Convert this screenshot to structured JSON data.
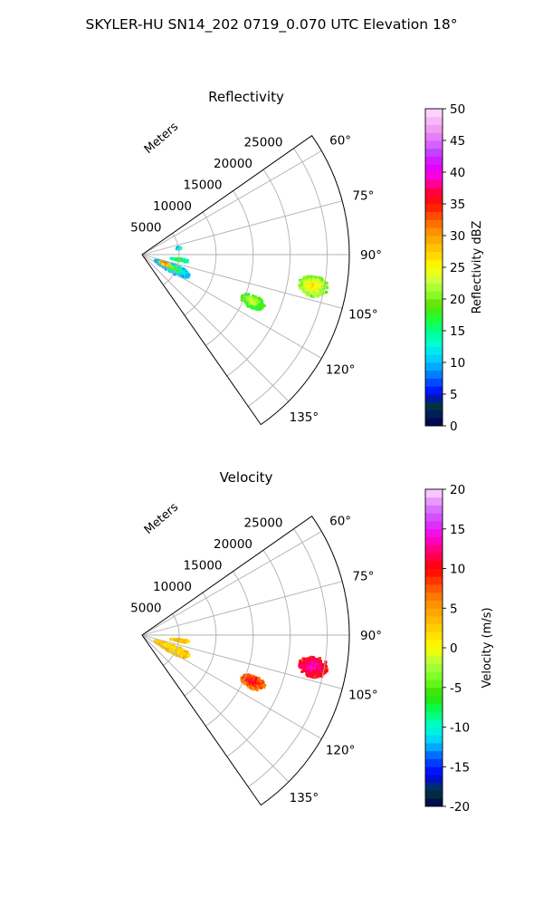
{
  "figure_title": "SKYLER-HU  SN14_202  0719_0.070 UTC Elevation 18°",
  "chart_data": [
    {
      "type": "heatmap",
      "subtype": "polar-sector",
      "title": "Reflectivity",
      "range_label": "Meters",
      "range_ticks": [
        "5000",
        "10000",
        "15000",
        "20000",
        "25000"
      ],
      "range_tick_values": [
        5000,
        10000,
        15000,
        20000,
        25000
      ],
      "range_max": 28000,
      "azimuth_ticks": [
        "60°",
        "75°",
        "90°",
        "105°",
        "120°",
        "135°"
      ],
      "azimuth_tick_values": [
        60,
        75,
        90,
        105,
        120,
        135
      ],
      "azimuth_range": [
        55,
        145
      ],
      "grid": true,
      "colorbar": {
        "label": "Reflectivity dBZ",
        "min": 0,
        "max": 50,
        "ticks": [
          "0",
          "5",
          "10",
          "15",
          "20",
          "25",
          "30",
          "35",
          "40",
          "45",
          "50"
        ],
        "tick_values": [
          0,
          5,
          10,
          15,
          20,
          25,
          30,
          35,
          40,
          45,
          50
        ]
      },
      "echoes": [
        {
          "az_min": 97,
          "az_max": 104,
          "r_min": 21500,
          "r_max": 25500,
          "core_value": 27,
          "edge_value": 20,
          "density": 0.85
        },
        {
          "az_min": 110,
          "az_max": 116,
          "r_min": 14500,
          "r_max": 18000,
          "core_value": 24,
          "edge_value": 17,
          "density": 0.8
        },
        {
          "az_min": 108,
          "az_max": 121,
          "r_min": 1800,
          "r_max": 7000,
          "core_value": 22,
          "edge_value": 9,
          "density": 0.75
        },
        {
          "az_min": 110,
          "az_max": 114,
          "r_min": 2500,
          "r_max": 4200,
          "core_value": 37,
          "edge_value": 25,
          "density": 0.9
        },
        {
          "az_min": 96,
          "az_max": 100,
          "r_min": 3800,
          "r_max": 6500,
          "core_value": 19,
          "edge_value": 13,
          "density": 0.5
        },
        {
          "az_min": 78,
          "az_max": 82,
          "r_min": 4600,
          "r_max": 5400,
          "core_value": 5,
          "edge_value": 14,
          "density": 0.5
        }
      ]
    },
    {
      "type": "heatmap",
      "subtype": "polar-sector",
      "title": "Velocity",
      "range_label": "Meters",
      "range_ticks": [
        "5000",
        "10000",
        "15000",
        "20000",
        "25000"
      ],
      "range_tick_values": [
        5000,
        10000,
        15000,
        20000,
        25000
      ],
      "range_max": 28000,
      "azimuth_ticks": [
        "60°",
        "75°",
        "90°",
        "105°",
        "120°",
        "135°"
      ],
      "azimuth_tick_values": [
        60,
        75,
        90,
        105,
        120,
        135
      ],
      "azimuth_range": [
        55,
        145
      ],
      "grid": true,
      "colorbar": {
        "label": "Velocity (m/s)",
        "min": -20,
        "max": 20,
        "ticks": [
          "-20",
          "-15",
          "-10",
          "-5",
          "0",
          "5",
          "10",
          "15",
          "20"
        ],
        "tick_values": [
          -20,
          -15,
          -10,
          -5,
          0,
          5,
          10,
          15,
          20
        ]
      },
      "echoes": [
        {
          "az_min": 97,
          "az_max": 104,
          "r_min": 21500,
          "r_max": 25500,
          "core_value": 14,
          "edge_value": 10,
          "density": 0.85
        },
        {
          "az_min": 110,
          "az_max": 116,
          "r_min": 14500,
          "r_max": 18000,
          "core_value": 12,
          "edge_value": 6,
          "density": 0.8
        },
        {
          "az_min": 108,
          "az_max": 121,
          "r_min": 1800,
          "r_max": 7000,
          "core_value": 1,
          "edge_value": 3,
          "density": 0.7
        },
        {
          "az_min": 96,
          "az_max": 100,
          "r_min": 3800,
          "r_max": 6500,
          "core_value": 4,
          "edge_value": 2,
          "density": 0.5
        }
      ]
    }
  ]
}
